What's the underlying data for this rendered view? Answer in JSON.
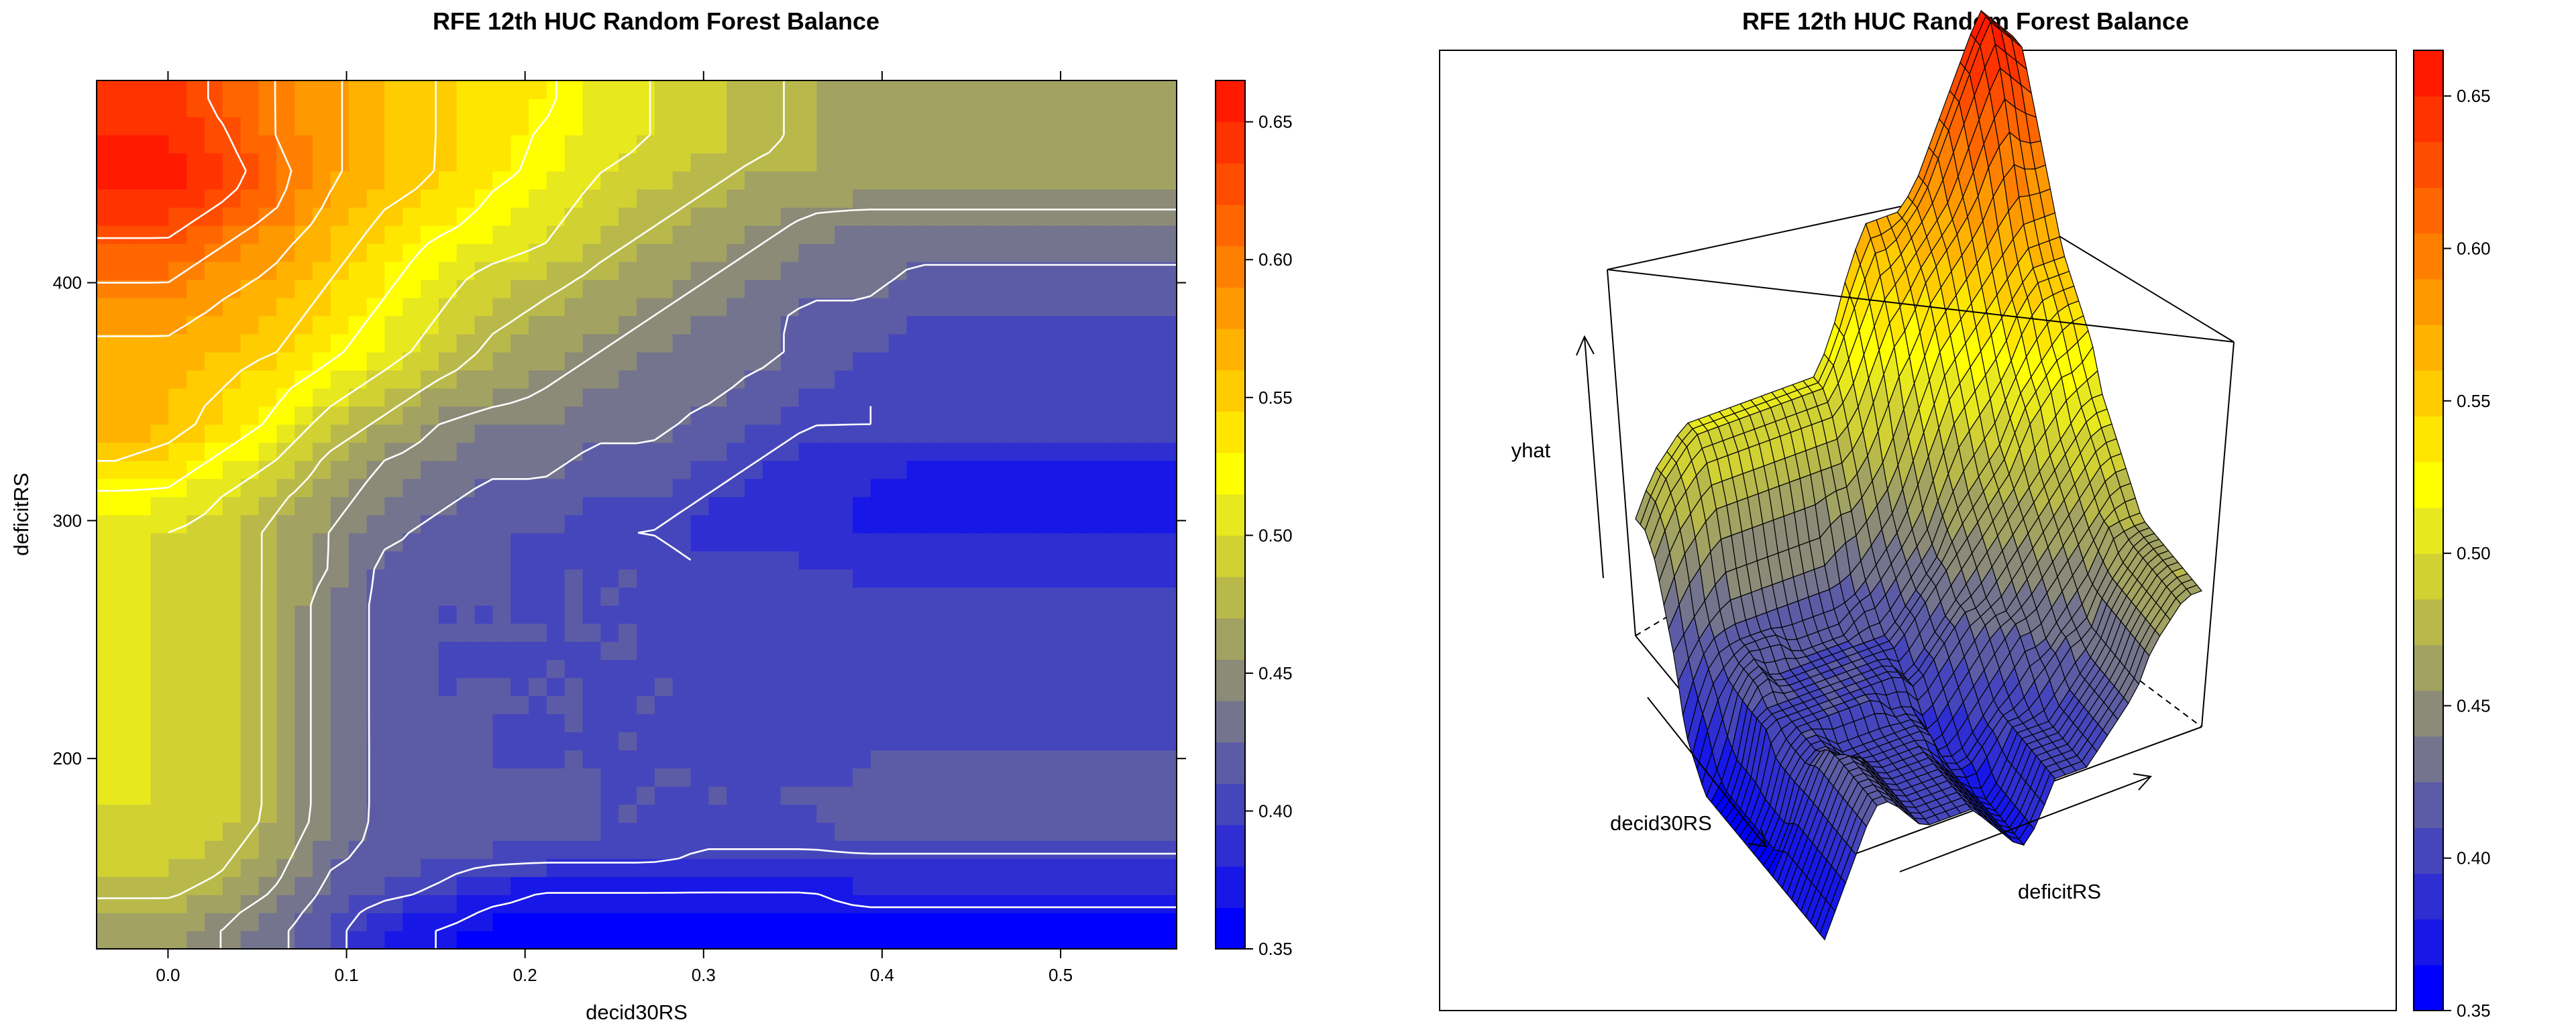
{
  "colors": {
    "scale": [
      "#0000ff",
      "#1717e8",
      "#2e2ed2",
      "#4646bc",
      "#5c5ca6",
      "#74748f",
      "#8b8b78",
      "#a2a262",
      "#b9b94b",
      "#d1d134",
      "#e8e81e",
      "#ffff00",
      "#ffe600",
      "#ffcc00",
      "#ffb300",
      "#ff9900",
      "#ff8000",
      "#ff6600",
      "#ff4d00",
      "#ff3300",
      "#ff1a00"
    ],
    "contour": "#ffffff",
    "frame": "#000000"
  },
  "chart_data": [
    {
      "type": "heatmap",
      "title": "RFE 12th HUC Random Forest Balance",
      "xlabel": "decid30RS",
      "ylabel": "deficitRS",
      "xlim": [
        -0.04,
        0.565
      ],
      "ylim": [
        120,
        485
      ],
      "x_ticks": [
        0.0,
        0.1,
        0.2,
        0.3,
        0.4,
        0.5
      ],
      "x_tick_labels": [
        "0.0",
        "0.1",
        "0.2",
        "0.3",
        "0.4",
        "0.5"
      ],
      "y_ticks": [
        200,
        300,
        400
      ],
      "y_tick_labels": [
        "200",
        "300",
        "400"
      ],
      "z_range": [
        0.35,
        0.665
      ],
      "colorbar_ticks": [
        0.35,
        0.4,
        0.45,
        0.5,
        0.55,
        0.6,
        0.65
      ],
      "colorbar_tick_labels": [
        "0.35",
        "0.40",
        "0.45",
        "0.50",
        "0.55",
        "0.60",
        "0.65"
      ],
      "contour_levels": [
        0.37,
        0.4,
        0.425,
        0.45,
        0.475,
        0.5,
        0.525,
        0.55,
        0.575,
        0.6,
        0.625
      ],
      "x": [
        -0.03,
        0.0,
        0.03,
        0.06,
        0.09,
        0.12,
        0.15,
        0.18,
        0.21,
        0.24,
        0.27,
        0.3,
        0.33,
        0.36,
        0.39,
        0.42,
        0.45,
        0.48,
        0.51,
        0.54
      ],
      "y": [
        130,
        145,
        160,
        175,
        190,
        205,
        220,
        235,
        250,
        265,
        280,
        295,
        310,
        325,
        340,
        355,
        370,
        385,
        400,
        415,
        430,
        445,
        460,
        475
      ],
      "z": [
        [
          0.46,
          0.46,
          0.45,
          0.43,
          0.41,
          0.38,
          0.37,
          0.36,
          0.36,
          0.36,
          0.36,
          0.36,
          0.36,
          0.36,
          0.36,
          0.36,
          0.36,
          0.36,
          0.36,
          0.36
        ],
        [
          0.48,
          0.48,
          0.47,
          0.45,
          0.42,
          0.41,
          0.4,
          0.38,
          0.37,
          0.37,
          0.37,
          0.37,
          0.37,
          0.37,
          0.38,
          0.38,
          0.38,
          0.38,
          0.38,
          0.38
        ],
        [
          0.49,
          0.49,
          0.48,
          0.46,
          0.43,
          0.42,
          0.41,
          0.41,
          0.41,
          0.41,
          0.41,
          0.4,
          0.4,
          0.4,
          0.4,
          0.4,
          0.4,
          0.4,
          0.4,
          0.4
        ],
        [
          0.5,
          0.5,
          0.49,
          0.47,
          0.44,
          0.42,
          0.42,
          0.42,
          0.42,
          0.41,
          0.41,
          0.41,
          0.41,
          0.41,
          0.42,
          0.42,
          0.42,
          0.42,
          0.42,
          0.42
        ],
        [
          0.5,
          0.5,
          0.49,
          0.47,
          0.44,
          0.42,
          0.42,
          0.41,
          0.41,
          0.41,
          0.41,
          0.41,
          0.41,
          0.41,
          0.41,
          0.42,
          0.42,
          0.42,
          0.42,
          0.42
        ],
        [
          0.5,
          0.5,
          0.49,
          0.47,
          0.44,
          0.42,
          0.42,
          0.41,
          0.41,
          0.41,
          0.41,
          0.41,
          0.4,
          0.4,
          0.41,
          0.41,
          0.41,
          0.41,
          0.41,
          0.41
        ],
        [
          0.5,
          0.5,
          0.49,
          0.47,
          0.44,
          0.42,
          0.41,
          0.41,
          0.41,
          0.41,
          0.41,
          0.41,
          0.4,
          0.4,
          0.4,
          0.4,
          0.4,
          0.4,
          0.4,
          0.4
        ],
        [
          0.5,
          0.5,
          0.49,
          0.47,
          0.44,
          0.42,
          0.41,
          0.41,
          0.41,
          0.41,
          0.41,
          0.41,
          0.4,
          0.4,
          0.4,
          0.4,
          0.4,
          0.4,
          0.4,
          0.4
        ],
        [
          0.5,
          0.5,
          0.49,
          0.47,
          0.44,
          0.42,
          0.41,
          0.41,
          0.41,
          0.41,
          0.41,
          0.41,
          0.4,
          0.4,
          0.4,
          0.4,
          0.4,
          0.4,
          0.4,
          0.4
        ],
        [
          0.5,
          0.5,
          0.49,
          0.47,
          0.44,
          0.42,
          0.41,
          0.41,
          0.41,
          0.41,
          0.41,
          0.4,
          0.4,
          0.4,
          0.4,
          0.4,
          0.4,
          0.4,
          0.4,
          0.4
        ],
        [
          0.5,
          0.5,
          0.49,
          0.47,
          0.45,
          0.42,
          0.42,
          0.41,
          0.41,
          0.41,
          0.41,
          0.4,
          0.4,
          0.4,
          0.39,
          0.39,
          0.39,
          0.39,
          0.39,
          0.39
        ],
        [
          0.5,
          0.5,
          0.49,
          0.47,
          0.45,
          0.43,
          0.42,
          0.41,
          0.41,
          0.4,
          0.4,
          0.39,
          0.38,
          0.38,
          0.38,
          0.38,
          0.38,
          0.38,
          0.38,
          0.38
        ],
        [
          0.52,
          0.52,
          0.5,
          0.48,
          0.46,
          0.44,
          0.43,
          0.42,
          0.42,
          0.41,
          0.41,
          0.4,
          0.39,
          0.38,
          0.38,
          0.37,
          0.37,
          0.37,
          0.37,
          0.37
        ],
        [
          0.55,
          0.54,
          0.52,
          0.5,
          0.47,
          0.45,
          0.44,
          0.43,
          0.43,
          0.42,
          0.42,
          0.41,
          0.4,
          0.39,
          0.39,
          0.38,
          0.38,
          0.38,
          0.38,
          0.38
        ],
        [
          0.57,
          0.56,
          0.54,
          0.52,
          0.49,
          0.47,
          0.45,
          0.44,
          0.44,
          0.43,
          0.43,
          0.42,
          0.41,
          0.4,
          0.4,
          0.4,
          0.4,
          0.4,
          0.4,
          0.4
        ],
        [
          0.57,
          0.56,
          0.55,
          0.53,
          0.51,
          0.49,
          0.47,
          0.46,
          0.45,
          0.44,
          0.43,
          0.43,
          0.42,
          0.41,
          0.4,
          0.4,
          0.4,
          0.4,
          0.4,
          0.4
        ],
        [
          0.57,
          0.57,
          0.56,
          0.55,
          0.53,
          0.51,
          0.49,
          0.47,
          0.46,
          0.45,
          0.44,
          0.43,
          0.43,
          0.42,
          0.41,
          0.4,
          0.4,
          0.4,
          0.4,
          0.4
        ],
        [
          0.58,
          0.58,
          0.57,
          0.56,
          0.54,
          0.52,
          0.5,
          0.48,
          0.47,
          0.46,
          0.45,
          0.44,
          0.43,
          0.42,
          0.42,
          0.41,
          0.41,
          0.41,
          0.41,
          0.41
        ],
        [
          0.6,
          0.6,
          0.58,
          0.57,
          0.55,
          0.53,
          0.51,
          0.49,
          0.48,
          0.47,
          0.46,
          0.45,
          0.44,
          0.43,
          0.43,
          0.42,
          0.42,
          0.42,
          0.42,
          0.42
        ],
        [
          0.62,
          0.62,
          0.6,
          0.58,
          0.56,
          0.54,
          0.52,
          0.51,
          0.5,
          0.48,
          0.47,
          0.46,
          0.45,
          0.44,
          0.43,
          0.43,
          0.43,
          0.43,
          0.43,
          0.43
        ],
        [
          0.64,
          0.64,
          0.62,
          0.6,
          0.57,
          0.55,
          0.54,
          0.52,
          0.51,
          0.49,
          0.48,
          0.47,
          0.46,
          0.45,
          0.45,
          0.45,
          0.45,
          0.45,
          0.45,
          0.45
        ],
        [
          0.66,
          0.66,
          0.64,
          0.61,
          0.58,
          0.56,
          0.55,
          0.53,
          0.52,
          0.5,
          0.49,
          0.48,
          0.47,
          0.47,
          0.46,
          0.46,
          0.46,
          0.46,
          0.46,
          0.46
        ],
        [
          0.65,
          0.65,
          0.63,
          0.6,
          0.58,
          0.56,
          0.55,
          0.54,
          0.52,
          0.51,
          0.5,
          0.49,
          0.48,
          0.47,
          0.47,
          0.47,
          0.47,
          0.47,
          0.47,
          0.47
        ],
        [
          0.64,
          0.64,
          0.62,
          0.6,
          0.58,
          0.56,
          0.55,
          0.54,
          0.53,
          0.51,
          0.5,
          0.49,
          0.48,
          0.47,
          0.47,
          0.47,
          0.47,
          0.47,
          0.47,
          0.47
        ]
      ]
    },
    {
      "type": "surface",
      "title": "RFE 12th HUC Random Forest Balance",
      "xlabel": "decid30RS",
      "ylabel": "deficitRS",
      "zlabel": "yhat",
      "z_range": [
        0.35,
        0.665
      ],
      "colorbar_ticks": [
        0.35,
        0.4,
        0.45,
        0.5,
        0.55,
        0.6,
        0.65
      ],
      "colorbar_tick_labels": [
        "0.35",
        "0.40",
        "0.45",
        "0.50",
        "0.55",
        "0.60",
        "0.65"
      ],
      "data_source": "same grid as the left panel"
    }
  ]
}
